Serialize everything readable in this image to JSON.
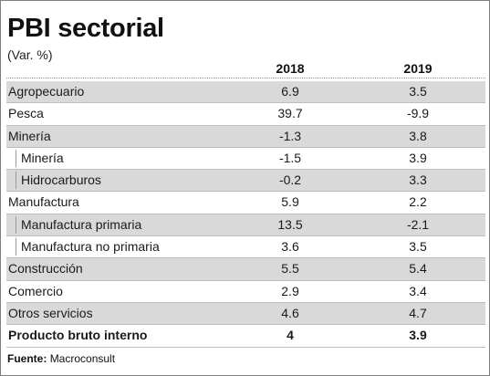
{
  "title": "PBI sectorial",
  "subtitle": "(Var. %)",
  "columns": [
    "2018",
    "2019"
  ],
  "rows": [
    {
      "label": "Agropecuario",
      "v2018": "6.9",
      "v2019": "3.5",
      "indent": false,
      "shaded": true,
      "bold": false
    },
    {
      "label": "Pesca",
      "v2018": "39.7",
      "v2019": "-9.9",
      "indent": false,
      "shaded": false,
      "bold": false
    },
    {
      "label": "Minería",
      "v2018": "-1.3",
      "v2019": "3.8",
      "indent": false,
      "shaded": true,
      "bold": false
    },
    {
      "label": "Minería",
      "v2018": "-1.5",
      "v2019": "3.9",
      "indent": true,
      "shaded": false,
      "bold": false
    },
    {
      "label": "Hidrocarburos",
      "v2018": "-0.2",
      "v2019": "3.3",
      "indent": true,
      "shaded": true,
      "bold": false
    },
    {
      "label": "Manufactura",
      "v2018": "5.9",
      "v2019": "2.2",
      "indent": false,
      "shaded": false,
      "bold": false
    },
    {
      "label": "Manufactura primaria",
      "v2018": "13.5",
      "v2019": "-2.1",
      "indent": true,
      "shaded": true,
      "bold": false
    },
    {
      "label": "Manufactura no primaria",
      "v2018": "3.6",
      "v2019": "3.5",
      "indent": true,
      "shaded": false,
      "bold": false
    },
    {
      "label": "Construcción",
      "v2018": "5.5",
      "v2019": "5.4",
      "indent": false,
      "shaded": true,
      "bold": false
    },
    {
      "label": "Comercio",
      "v2018": "2.9",
      "v2019": "3.4",
      "indent": false,
      "shaded": false,
      "bold": false
    },
    {
      "label": "Otros servicios",
      "v2018": "4.6",
      "v2019": "4.7",
      "indent": false,
      "shaded": true,
      "bold": false
    },
    {
      "label": "Producto bruto interno",
      "v2018": "4",
      "v2019": "3.9",
      "indent": false,
      "shaded": false,
      "bold": true
    }
  ],
  "source": {
    "label": "Fuente:",
    "text": "Macroconsult"
  },
  "colors": {
    "shade": "#d9d9d9",
    "border": "#bdbdbd",
    "frame": "#7f7f7f"
  }
}
